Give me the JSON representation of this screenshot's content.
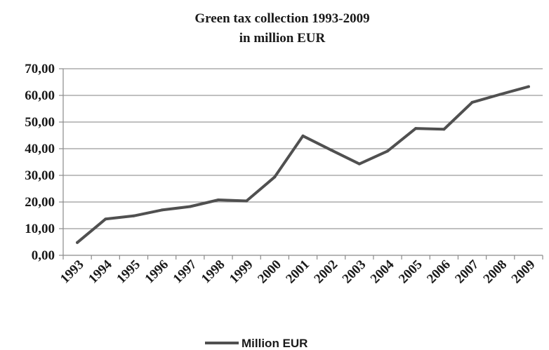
{
  "chart_data": {
    "type": "line",
    "title": "Green tax collection 1993-2009",
    "subtitle": "in million EUR",
    "xlabel": "",
    "ylabel": "",
    "categories": [
      "1993",
      "1994",
      "1995",
      "1996",
      "1997",
      "1998",
      "1999",
      "2000",
      "2001",
      "2002",
      "2003",
      "2004",
      "2005",
      "2006",
      "2007",
      "2008",
      "2009"
    ],
    "series": [
      {
        "name": "Million EUR",
        "values": [
          4.8,
          13.6,
          14.8,
          17.0,
          18.3,
          20.8,
          20.4,
          29.4,
          44.8,
          39.5,
          34.3,
          39.1,
          47.6,
          47.3,
          57.4,
          60.4,
          63.3
        ],
        "color": "#505050"
      }
    ],
    "yticks": [
      "0,00",
      "10,00",
      "20,00",
      "30,00",
      "40,00",
      "50,00",
      "60,00",
      "70,00"
    ],
    "ylim": [
      0,
      70
    ],
    "grid": true,
    "legend_position": "bottom"
  }
}
